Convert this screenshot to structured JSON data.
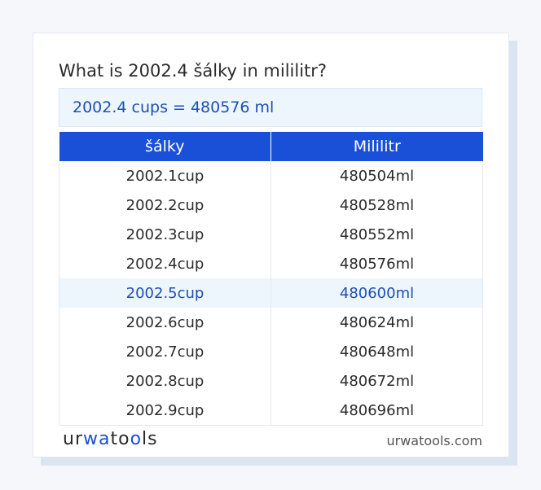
{
  "header": {
    "title": "What is 2002.4 šálky in mililitr?"
  },
  "result": {
    "text": "2002.4 cups = 480576 ml"
  },
  "table": {
    "columns": [
      "šálky",
      "Mililitr"
    ],
    "highlight_index": 4,
    "rows": [
      {
        "from": "2002.1cup",
        "to": "480504ml"
      },
      {
        "from": "2002.2cup",
        "to": "480528ml"
      },
      {
        "from": "2002.3cup",
        "to": "480552ml"
      },
      {
        "from": "2002.4cup",
        "to": "480576ml"
      },
      {
        "from": "2002.5cup",
        "to": "480600ml"
      },
      {
        "from": "2002.6cup",
        "to": "480624ml"
      },
      {
        "from": "2002.7cup",
        "to": "480648ml"
      },
      {
        "from": "2002.8cup",
        "to": "480672ml"
      },
      {
        "from": "2002.9cup",
        "to": "480696ml"
      }
    ]
  },
  "footer": {
    "logo_before": "ur",
    "logo_accent": "wa",
    "logo_mid": "to",
    "logo_accent2": "o",
    "logo_after": "ls",
    "site": "urwatools.com"
  },
  "colors": {
    "accent": "#1a4fd8",
    "highlight_bg": "#edf5fd",
    "highlight_text": "#1e50b4"
  }
}
